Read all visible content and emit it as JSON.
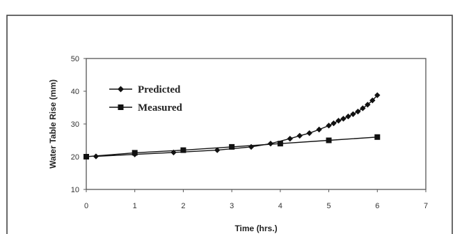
{
  "chart_data": {
    "type": "line",
    "title": "",
    "xlabel": "Time (hrs.)",
    "ylabel": "Water Table Rise (mm)",
    "xlim": [
      0,
      7
    ],
    "ylim": [
      10,
      50
    ],
    "xticks": [
      "0",
      "1",
      "2",
      "3",
      "4",
      "5",
      "6",
      "7"
    ],
    "yticks": [
      "10",
      "20",
      "30",
      "40",
      "50"
    ],
    "grid": false,
    "legend_position": "upper-left",
    "series": [
      {
        "name": "Predicted",
        "marker": "diamond",
        "color": "#111111",
        "x": [
          0.2,
          1.0,
          1.8,
          2.7,
          3.4,
          3.8,
          4.2,
          4.4,
          4.6,
          4.8,
          5.0,
          5.1,
          5.2,
          5.3,
          5.4,
          5.5,
          5.6,
          5.7,
          5.8,
          5.9,
          6.0
        ],
        "y": [
          20.1,
          20.7,
          21.3,
          22.0,
          23.0,
          24.0,
          25.5,
          26.4,
          27.2,
          28.3,
          29.5,
          30.2,
          31.0,
          31.6,
          32.3,
          33.0,
          33.8,
          34.8,
          35.9,
          37.2,
          38.8
        ]
      },
      {
        "name": "Measured",
        "marker": "square",
        "color": "#111111",
        "x": [
          0.0,
          1.0,
          2.0,
          3.0,
          4.0,
          5.0,
          6.0
        ],
        "y": [
          20.0,
          21.2,
          22.0,
          23.0,
          24.0,
          25.0,
          26.0
        ]
      }
    ]
  }
}
